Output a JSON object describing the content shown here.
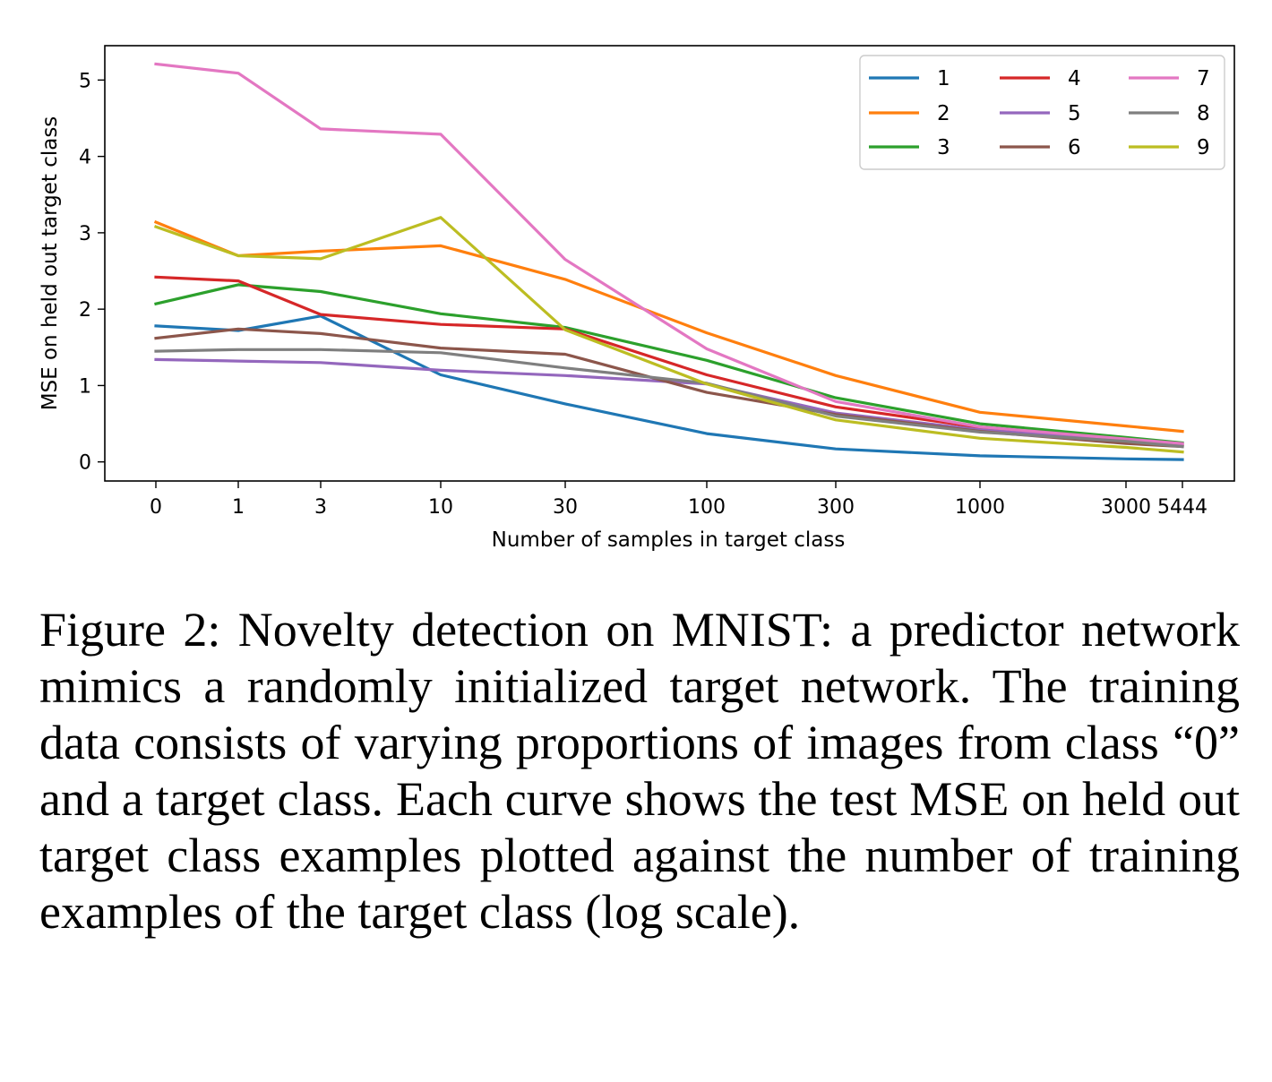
{
  "caption": "Figure 2: Novelty detection on MNIST: a predictor network mimics a randomly initialized target network. The training data consists of varying proportions of images from class “0” and a target class. Each curve shows the test MSE on held out target class examples plotted against the number of training examples of the target class (log scale).",
  "chart_data": {
    "type": "line",
    "xlabel": "Number of samples in target class",
    "ylabel": "MSE on held out target class",
    "categories": [
      "0",
      "1",
      "3",
      "10",
      "30",
      "100",
      "300",
      "1000",
      "3000",
      "5444"
    ],
    "x_scale": "log",
    "ylim": [
      -0.25,
      5.45
    ],
    "yticks": [
      "0",
      "1",
      "2",
      "3",
      "4",
      "5"
    ],
    "grid": false,
    "legend_position": "top-right",
    "legend_columns": 3,
    "series": [
      {
        "name": "1",
        "color": "#1f77b4",
        "values": [
          1.78,
          1.72,
          1.91,
          1.14,
          0.76,
          0.37,
          0.17,
          0.08,
          0.04,
          0.03
        ]
      },
      {
        "name": "2",
        "color": "#ff7f0e",
        "values": [
          3.14,
          2.7,
          2.76,
          2.83,
          2.39,
          1.69,
          1.13,
          0.65,
          0.47,
          0.4
        ]
      },
      {
        "name": "3",
        "color": "#2ca02c",
        "values": [
          2.07,
          2.32,
          2.23,
          1.94,
          1.76,
          1.33,
          0.84,
          0.5,
          0.32,
          0.25
        ]
      },
      {
        "name": "4",
        "color": "#d62728",
        "values": [
          2.42,
          2.37,
          1.93,
          1.8,
          1.74,
          1.14,
          0.72,
          0.45,
          0.3,
          0.22
        ]
      },
      {
        "name": "5",
        "color": "#9467bd",
        "values": [
          1.34,
          1.32,
          1.3,
          1.2,
          1.13,
          1.02,
          0.64,
          0.42,
          0.28,
          0.23
        ]
      },
      {
        "name": "6",
        "color": "#8c564b",
        "values": [
          1.62,
          1.74,
          1.68,
          1.49,
          1.41,
          0.91,
          0.62,
          0.4,
          0.24,
          0.2
        ]
      },
      {
        "name": "7",
        "color": "#e377c2",
        "values": [
          5.21,
          5.09,
          4.36,
          4.29,
          2.65,
          1.48,
          0.79,
          0.46,
          0.3,
          0.24
        ]
      },
      {
        "name": "8",
        "color": "#7f7f7f",
        "values": [
          1.45,
          1.47,
          1.47,
          1.43,
          1.23,
          1.03,
          0.6,
          0.39,
          0.27,
          0.2
        ]
      },
      {
        "name": "9",
        "color": "#bcbd22",
        "values": [
          3.08,
          2.7,
          2.66,
          3.2,
          1.73,
          1.02,
          0.55,
          0.31,
          0.19,
          0.13
        ]
      }
    ]
  }
}
